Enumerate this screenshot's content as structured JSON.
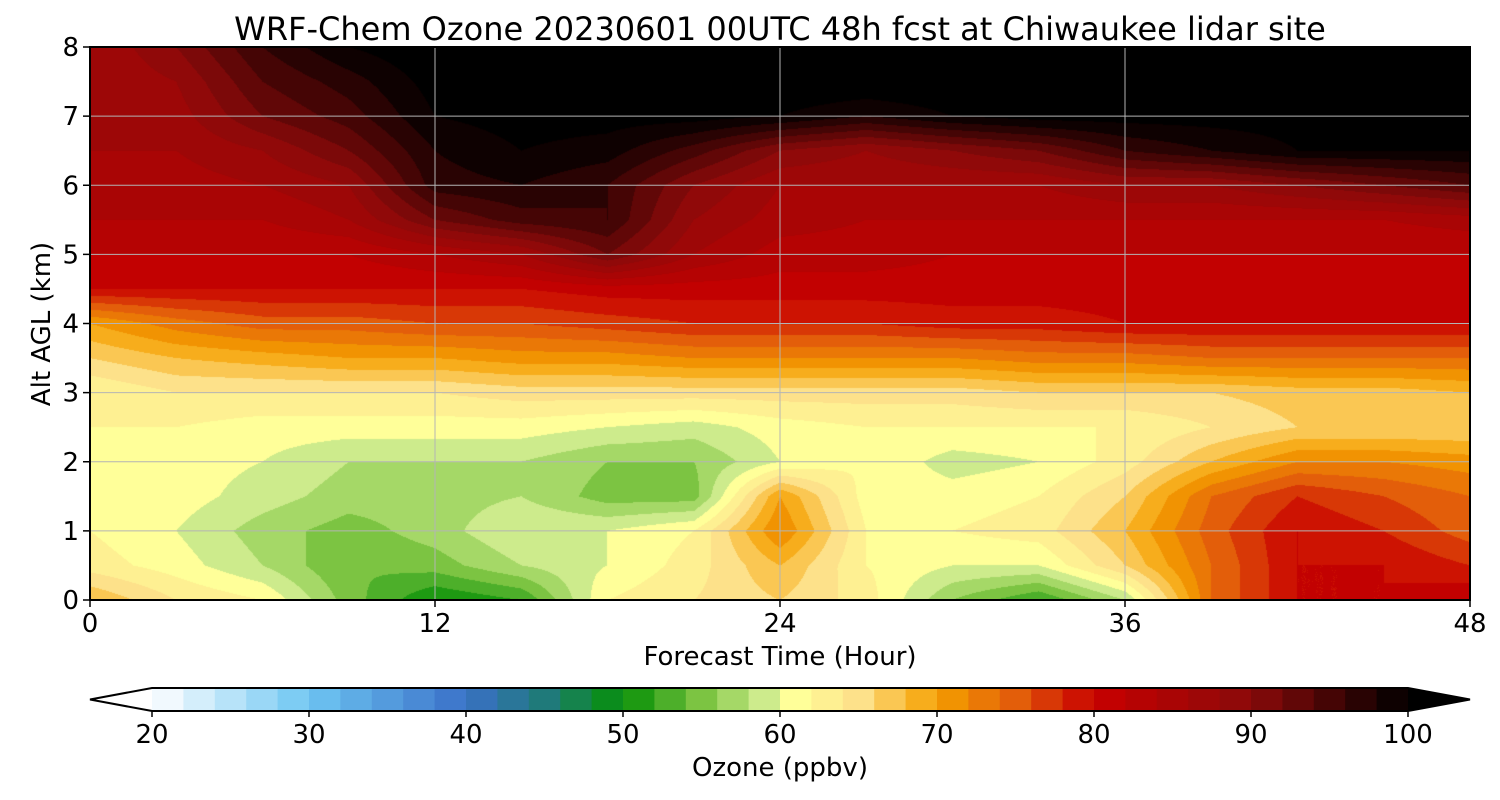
{
  "chart_data": {
    "type": "heatmap",
    "title": "WRF-Chem Ozone  20230601 00UTC 48h fcst at Chiwaukee lidar site",
    "xlabel": "Forecast Time (Hour)",
    "ylabel": "Alt AGL (km)",
    "xlim": [
      0,
      48
    ],
    "ylim": [
      0,
      8
    ],
    "x_ticks": [
      0,
      12,
      24,
      36,
      48
    ],
    "y_ticks": [
      0,
      1,
      2,
      3,
      4,
      5,
      6,
      7,
      8
    ],
    "grid": true,
    "x": [
      0,
      3,
      6,
      9,
      12,
      15,
      18,
      21,
      24,
      27,
      30,
      33,
      36,
      39,
      42,
      45,
      48
    ],
    "y": [
      0,
      0.5,
      1,
      1.5,
      2,
      2.5,
      3,
      3.5,
      4,
      4.5,
      5,
      5.5,
      6,
      6.5,
      7,
      7.5,
      8
    ],
    "z_units": "ppbv",
    "z": [
      [
        68,
        64,
        62,
        55,
        50,
        52,
        62,
        64,
        66,
        63,
        56,
        52,
        58,
        74,
        80,
        80,
        82
      ],
      [
        63,
        61,
        58,
        54,
        55,
        58,
        60,
        63,
        68,
        62,
        60,
        60,
        66,
        74,
        80,
        80,
        78
      ],
      [
        62,
        60,
        57,
        55,
        57,
        60,
        60,
        62,
        72,
        62,
        62,
        63,
        68,
        75,
        80,
        78,
        75
      ],
      [
        62,
        61,
        59,
        57,
        57,
        58,
        55,
        55,
        70,
        61,
        61,
        62,
        66,
        74,
        78,
        76,
        74
      ],
      [
        62,
        61,
        60,
        58,
        58,
        58,
        56,
        56,
        60,
        62,
        59,
        60,
        63,
        68,
        72,
        72,
        71
      ],
      [
        62,
        62,
        61,
        61,
        61,
        61,
        60,
        59,
        61,
        62,
        62,
        62,
        62,
        64,
        66,
        66,
        66
      ],
      [
        62,
        64,
        64,
        64,
        64,
        65,
        65,
        65,
        65,
        65,
        65,
        66,
        66,
        66,
        67,
        67,
        68
      ],
      [
        66,
        68,
        69,
        70,
        70,
        71,
        71,
        72,
        72,
        72,
        72,
        73,
        73,
        74,
        74,
        74,
        74
      ],
      [
        70,
        73,
        75,
        75,
        76,
        76,
        77,
        78,
        78,
        78,
        79,
        79,
        80,
        80,
        80,
        80,
        80
      ],
      [
        80,
        80,
        80,
        80,
        80,
        80,
        81,
        81,
        81,
        81,
        81,
        81,
        81,
        81,
        81,
        81,
        81
      ],
      [
        82,
        82,
        82,
        82,
        84,
        86,
        92,
        86,
        83,
        83,
        82,
        82,
        82,
        82,
        82,
        82,
        82
      ],
      [
        84,
        84,
        84,
        86,
        92,
        95,
        96,
        88,
        85,
        84,
        84,
        84,
        84,
        84,
        84,
        84,
        85
      ],
      [
        86,
        85,
        86,
        88,
        97,
        98,
        96,
        90,
        86,
        86,
        86,
        86,
        88,
        88,
        90,
        92,
        94
      ],
      [
        86,
        86,
        88,
        92,
        98,
        100,
        99,
        95,
        90,
        88,
        90,
        92,
        96,
        98,
        100,
        100,
        100
      ],
      [
        86,
        87,
        92,
        95,
        100,
        101,
        101,
        101,
        100,
        98,
        100,
        101,
        101,
        101,
        101,
        101,
        101
      ],
      [
        86,
        88,
        94,
        97,
        101,
        102,
        102,
        102,
        102,
        102,
        102,
        102,
        102,
        102,
        102,
        102,
        102
      ],
      [
        86,
        90,
        96,
        100,
        102,
        102,
        102,
        102,
        102,
        102,
        102,
        102,
        102,
        102,
        102,
        102,
        102
      ]
    ],
    "colorbar": {
      "label": "Ozone  (ppbv)",
      "min": 20,
      "max": 100,
      "ticks": [
        20,
        30,
        40,
        50,
        60,
        70,
        80,
        90,
        100
      ],
      "extend": "both",
      "levels_step": 2,
      "color_stops": [
        {
          "v": 20,
          "c": "#ffffff"
        },
        {
          "v": 30,
          "c": "#6ec6f2"
        },
        {
          "v": 40,
          "c": "#3a70c8"
        },
        {
          "v": 45,
          "c": "#1f7a7a"
        },
        {
          "v": 50,
          "c": "#069006"
        },
        {
          "v": 55,
          "c": "#7cc442"
        },
        {
          "v": 59,
          "c": "#cdeb8c"
        },
        {
          "v": 61,
          "c": "#ffff99"
        },
        {
          "v": 65,
          "c": "#fde18a"
        },
        {
          "v": 70,
          "c": "#f5a000"
        },
        {
          "v": 75,
          "c": "#e35e0a"
        },
        {
          "v": 80,
          "c": "#c80000"
        },
        {
          "v": 90,
          "c": "#8a0a0a"
        },
        {
          "v": 100,
          "c": "#000000"
        }
      ]
    },
    "grid_color": "#b4b4b4"
  }
}
